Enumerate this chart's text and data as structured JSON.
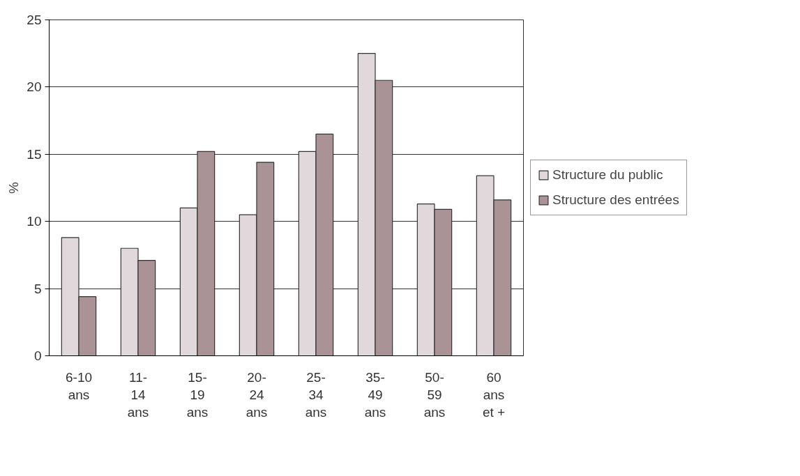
{
  "chart_data": {
    "type": "bar",
    "ylabel": "%",
    "categories": [
      "6-10\nans",
      "11-\n14\nans",
      "15-\n19\nans",
      "20-\n24\nans",
      "25-\n34\nans",
      "35-\n49\nans",
      "50-\n59\nans",
      "60\nans\net +"
    ],
    "series": [
      {
        "name": "Structure du public",
        "color": "#e0d8da",
        "values": [
          8.8,
          8.0,
          11.0,
          10.5,
          15.2,
          22.5,
          11.3,
          13.4
        ]
      },
      {
        "name": "Structure des entrées",
        "color": "#a99396",
        "values": [
          4.4,
          7.1,
          15.2,
          14.4,
          16.5,
          20.5,
          10.9,
          11.6
        ]
      }
    ],
    "ylim": [
      0,
      25
    ],
    "yticks": [
      0,
      5,
      10,
      15,
      20,
      25
    ],
    "grid": "y",
    "legend": "right"
  }
}
